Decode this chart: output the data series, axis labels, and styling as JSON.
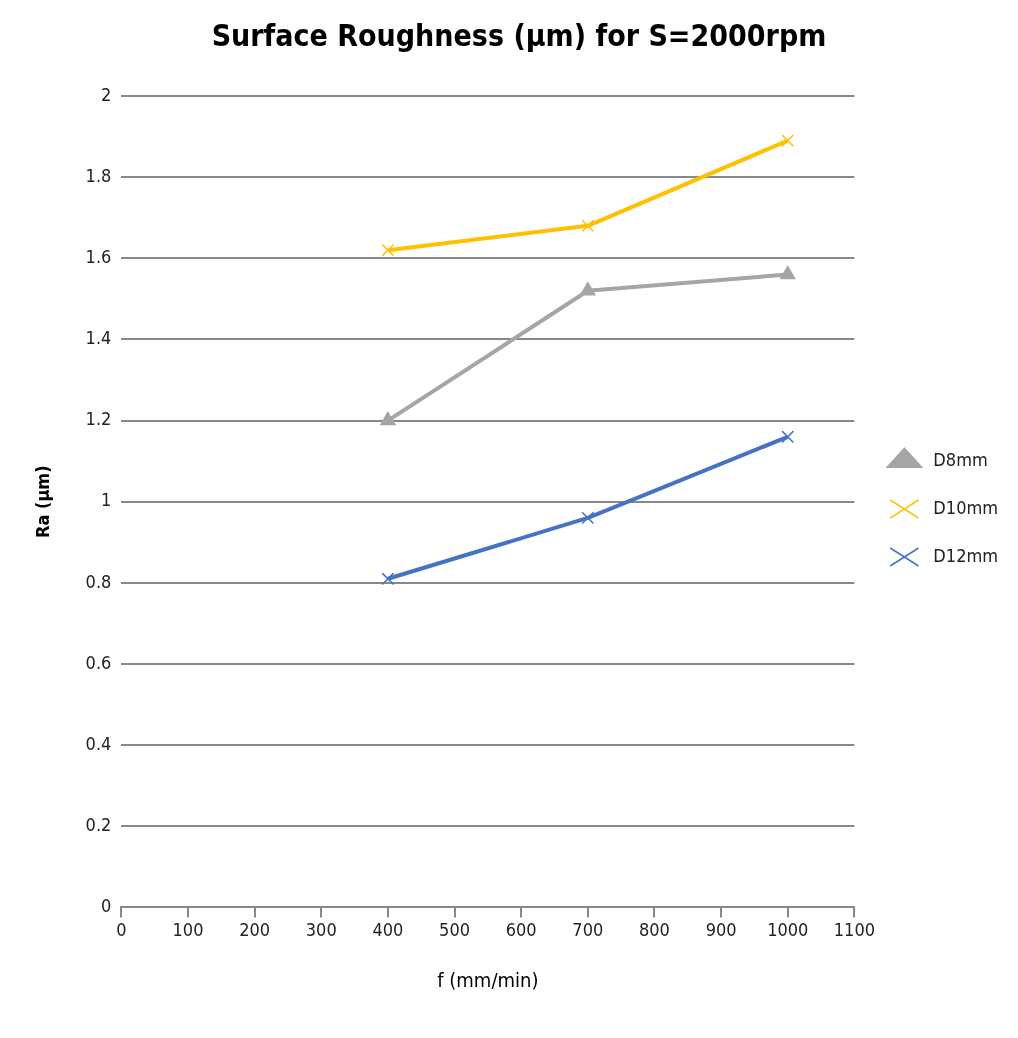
{
  "chart_data": {
    "type": "line",
    "title": "Surface Roughness (µm) for S=2000rpm",
    "xlabel": "f (mm/min)",
    "ylabel": "Ra (µm)",
    "x": [
      400,
      700,
      1000
    ],
    "series": [
      {
        "name": "D8mm",
        "color": "#a5a5a5",
        "marker": "triangle",
        "values": [
          1.2,
          1.52,
          1.56
        ]
      },
      {
        "name": "D10mm",
        "color": "#ffc000",
        "marker": "cross",
        "values": [
          1.62,
          1.68,
          1.89
        ]
      },
      {
        "name": "D12mm",
        "color": "#4472c4",
        "marker": "cross",
        "values": [
          0.81,
          0.96,
          1.16
        ]
      }
    ],
    "xlim": [
      0,
      1100
    ],
    "xticks": [
      0,
      100,
      200,
      300,
      400,
      500,
      600,
      700,
      800,
      900,
      1000,
      1100
    ],
    "ylim": [
      0,
      2
    ],
    "yticks": [
      0,
      0.2,
      0.4,
      0.6,
      0.8,
      1,
      1.2,
      1.4,
      1.6,
      1.8,
      2
    ],
    "grid": "y",
    "legend": "right",
    "line_style": "solid"
  }
}
